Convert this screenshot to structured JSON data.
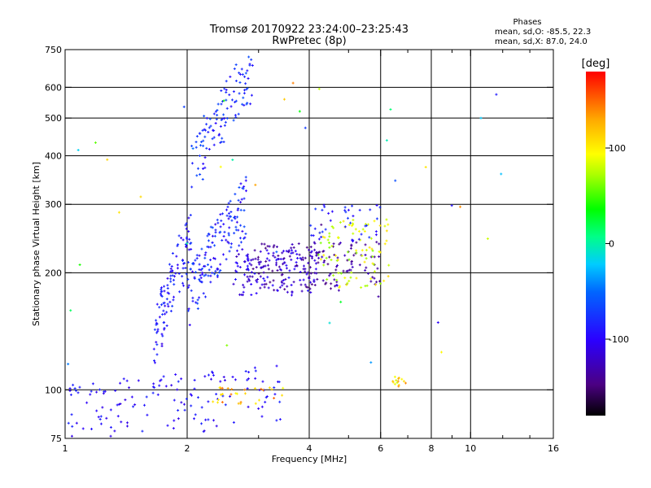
{
  "title_line1": "Tromsø 20170922 23:24:00–23:25:43",
  "title_line2": "RwPretec (8p)",
  "phases": {
    "header": "Phases",
    "line_o": "mean, sd,O: -85.5, 22.3",
    "line_x": "mean, sd,X:  87.0, 24.0"
  },
  "colorbar": {
    "title": "[deg]",
    "ticks": [
      {
        "value": 100,
        "label": "100"
      },
      {
        "value": 0,
        "label": "0"
      },
      {
        "value": -100,
        "label": "-100"
      }
    ],
    "range": [
      -180,
      180
    ]
  },
  "chart_data": {
    "type": "scatter",
    "xlabel": "Frequency [MHz]",
    "ylabel": "Stationary phase Virtual Height [km]",
    "x_scale": "log",
    "y_scale": "log",
    "xlim": [
      1,
      16
    ],
    "ylim": [
      75,
      750
    ],
    "xticks": [
      {
        "value": 1,
        "label": "1"
      },
      {
        "value": 2,
        "label": "2"
      },
      {
        "value": 4,
        "label": "4"
      },
      {
        "value": 6,
        "label": "6"
      },
      {
        "value": 8,
        "label": "8"
      },
      {
        "value": 10,
        "label": "10"
      },
      {
        "value": 16,
        "label": "16"
      }
    ],
    "yticks": [
      {
        "value": 75,
        "label": "75"
      },
      {
        "value": 100,
        "label": "100"
      },
      {
        "value": 200,
        "label": "200"
      },
      {
        "value": 300,
        "label": "300"
      },
      {
        "value": 400,
        "label": "400"
      },
      {
        "value": 500,
        "label": "500"
      },
      {
        "value": 600,
        "label": "600"
      },
      {
        "value": 750,
        "label": "750"
      }
    ],
    "grid_x": [
      2,
      4,
      6,
      8,
      10
    ],
    "grid_y": [
      100,
      200,
      300,
      400,
      500,
      600
    ],
    "minor_xticks": [
      3,
      5,
      7,
      9,
      12,
      14
    ],
    "color_by": "phase_deg",
    "clusters": [
      {
        "name": "E-layer trace",
        "x_range": [
          1.0,
          3.4
        ],
        "y_range": [
          88,
          98
        ],
        "phase_range": [
          -110,
          -80
        ],
        "count": 140,
        "trend": "rise"
      },
      {
        "name": "E-layer trace high",
        "x_range": [
          2.3,
          3.5
        ],
        "y_range": [
          92,
          102
        ],
        "phase_range": [
          90,
          150
        ],
        "count": 30,
        "trend": "flat"
      },
      {
        "name": "F1 low freq branch",
        "x_range": [
          1.65,
          2.05
        ],
        "y_range": [
          130,
          250
        ],
        "phase_range": [
          -110,
          -70
        ],
        "count": 110,
        "trend": "rise"
      },
      {
        "name": "F1 main",
        "x_range": [
          2.0,
          2.8
        ],
        "y_range": [
          170,
          300
        ],
        "phase_range": [
          -110,
          -60
        ],
        "count": 150,
        "trend": "rise"
      },
      {
        "name": "F2 O trace",
        "x_range": [
          2.6,
          4.2
        ],
        "y_range": [
          175,
          230
        ],
        "phase_range": [
          -130,
          -90
        ],
        "count": 150,
        "trend": "flat"
      },
      {
        "name": "F2 O trace dark",
        "x_range": [
          2.9,
          6.0
        ],
        "y_range": [
          180,
          240
        ],
        "phase_range": [
          -150,
          -120
        ],
        "count": 140,
        "trend": "flat"
      },
      {
        "name": "F2 X trace",
        "x_range": [
          4.2,
          6.3
        ],
        "y_range": [
          182,
          275
        ],
        "phase_range": [
          60,
          110
        ],
        "count": 90,
        "trend": "flat"
      },
      {
        "name": "F2 upper trace",
        "x_range": [
          4.0,
          6.0
        ],
        "y_range": [
          240,
          300
        ],
        "phase_range": [
          -100,
          -70
        ],
        "count": 40,
        "trend": "flat"
      },
      {
        "name": "Second hop",
        "x_range": [
          2.05,
          2.9
        ],
        "y_range": [
          370,
          660
        ],
        "phase_range": [
          -100,
          -60
        ],
        "count": 110,
        "trend": "rise"
      },
      {
        "name": "Sporadic 6-7 MHz",
        "x_range": [
          6.4,
          7.1
        ],
        "y_range": [
          102,
          108
        ],
        "phase_range": [
          80,
          150
        ],
        "count": 14,
        "trend": "flat"
      },
      {
        "name": "Scattered isolated points",
        "x_range": [
          1.0,
          12.0
        ],
        "y_range": [
          80,
          620
        ],
        "phase_range": [
          -150,
          150
        ],
        "count": 45,
        "trend": "random"
      }
    ]
  }
}
